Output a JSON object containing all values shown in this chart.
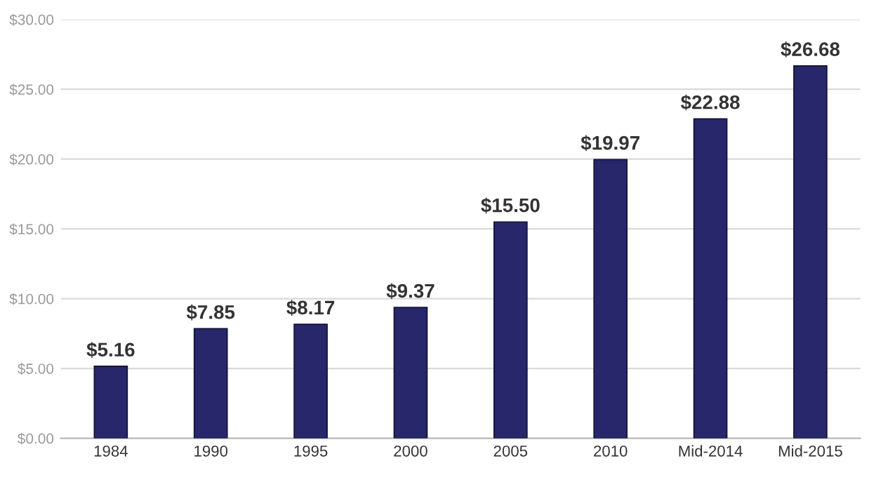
{
  "chart_data": {
    "type": "bar",
    "categories": [
      "1984",
      "1990",
      "1995",
      "2000",
      "2005",
      "2010",
      "Mid-2014",
      "Mid-2015"
    ],
    "values": [
      5.16,
      7.85,
      8.17,
      9.37,
      15.5,
      19.97,
      22.88,
      26.68
    ],
    "value_labels": [
      "$5.16",
      "$7.85",
      "$8.17",
      "$9.37",
      "$15.50",
      "$19.97",
      "$22.88",
      "$26.68"
    ],
    "color": "#28276b",
    "ylim": [
      0,
      30
    ],
    "yticks": [
      {
        "value": 0,
        "label": "$0.00"
      },
      {
        "value": 5,
        "label": "$5.00"
      },
      {
        "value": 10,
        "label": "$10.00"
      },
      {
        "value": 15,
        "label": "$15.00"
      },
      {
        "value": 20,
        "label": "$20.00"
      },
      {
        "value": 25,
        "label": "$25.00"
      },
      {
        "value": 30,
        "label": "$30.00"
      }
    ],
    "grid": "y",
    "legend": false
  }
}
